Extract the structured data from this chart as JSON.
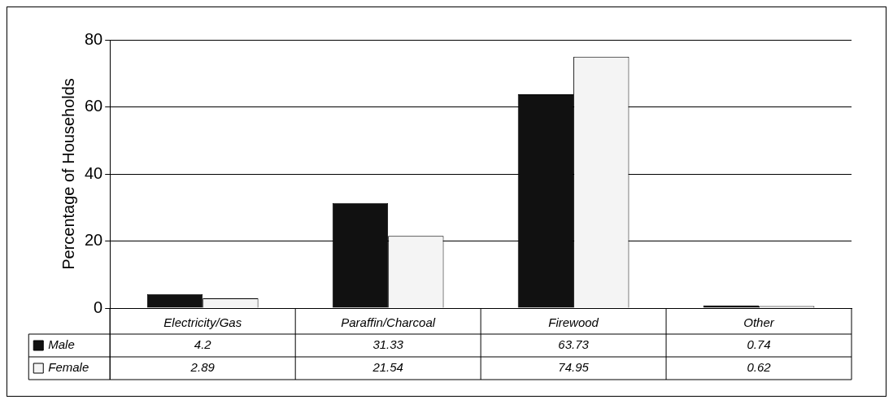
{
  "chart_data": {
    "type": "bar",
    "ylabel": "Percentage of Households",
    "categories": [
      "Electricity/Gas",
      "Paraffin/Charcoal",
      "Firewood",
      "Other"
    ],
    "series": [
      {
        "name": "Male",
        "color": "#111111",
        "values": [
          4.2,
          31.33,
          63.73,
          0.74
        ]
      },
      {
        "name": "Female",
        "color": "#f4f4f4",
        "values": [
          2.89,
          21.54,
          74.95,
          0.62
        ]
      }
    ],
    "ylim": [
      0,
      80
    ],
    "yticks": [
      0,
      20,
      40,
      60,
      80
    ],
    "grid": "y",
    "data_labels": true,
    "legend": "bottom left"
  }
}
